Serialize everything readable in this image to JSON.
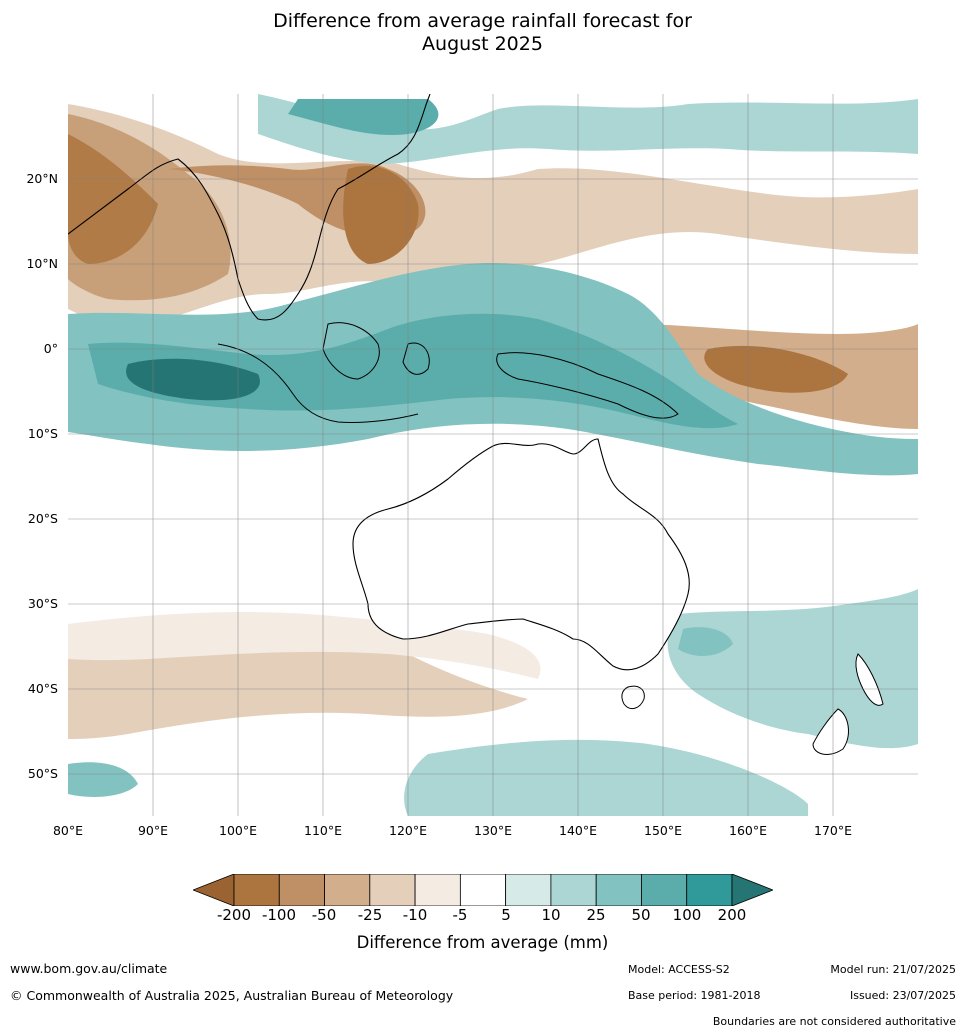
{
  "title_line1": "Difference from average rainfall forecast for",
  "title_line2": "August 2025",
  "lat_labels": [
    "20°N",
    "10°N",
    "0°",
    "10°S",
    "20°S",
    "30°S",
    "40°S",
    "50°S"
  ],
  "lon_labels": [
    "80°E",
    "90°E",
    "100°E",
    "110°E",
    "120°E",
    "130°E",
    "140°E",
    "150°E",
    "160°E",
    "170°E"
  ],
  "colorbar": {
    "ticks": [
      "-200",
      "-100",
      "-50",
      "-25",
      "-10",
      "-5",
      "5",
      "10",
      "25",
      "50",
      "100",
      "200"
    ],
    "colors": [
      "#9b6232",
      "#ac743e",
      "#bf9066",
      "#d2ae8c",
      "#e4cfbb",
      "#f4ebe3",
      "#ffffff",
      "#d6ebe8",
      "#abd6d4",
      "#82c2c0",
      "#5aadab",
      "#30999a",
      "#267575"
    ],
    "label": "Difference from average (mm)"
  },
  "footer": {
    "url": "www.bom.gov.au/climate",
    "copyright": "© Commonwealth of Australia 2025, Australian Bureau of Meteorology",
    "model": "Model: ACCESS-S2",
    "base_period": "Base period: 1981-2018",
    "model_run": "Model run: 21/07/2025",
    "issued": "Issued: 23/07/2025",
    "disclaimer": "Boundaries are not considered authoritative"
  }
}
